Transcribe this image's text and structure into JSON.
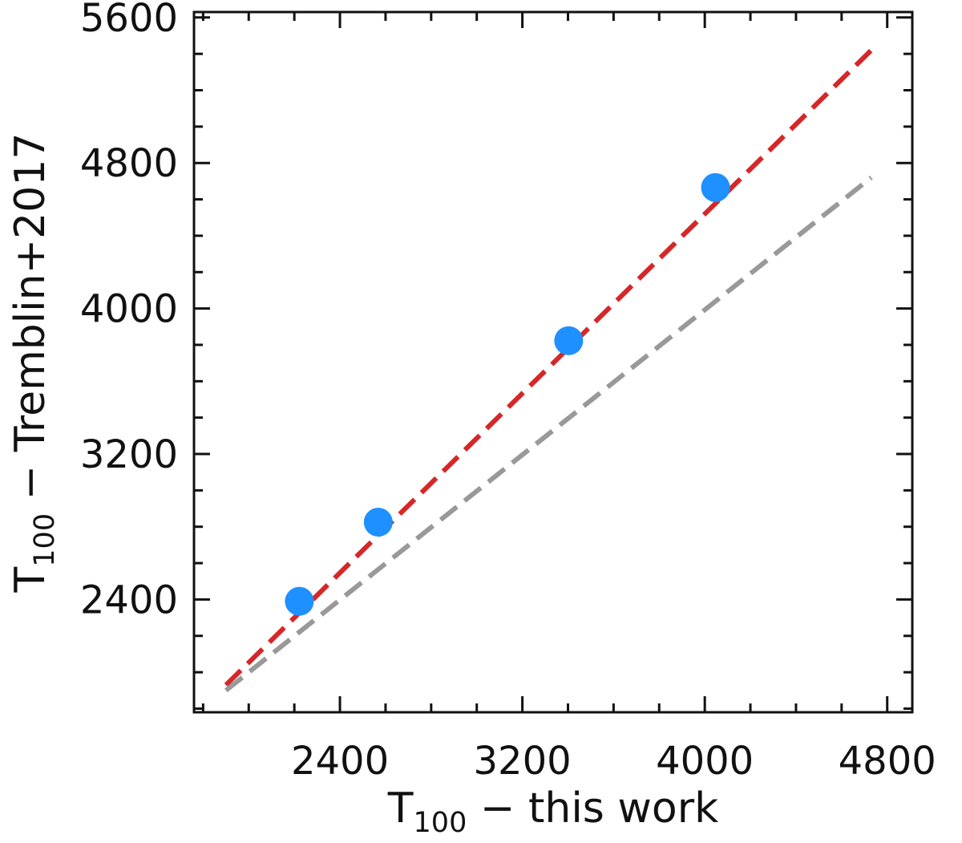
{
  "chart_data": {
    "type": "scatter",
    "title": "",
    "xlabel": {
      "main": "T",
      "sub": "100",
      "rest": " − this work"
    },
    "ylabel": {
      "main": "T",
      "sub": "100",
      "rest": " − Tremblin+2017"
    },
    "xlim": [
      1760,
      4910
    ],
    "ylim": [
      1780,
      5630
    ],
    "xticks": [
      2400,
      3200,
      4000,
      4800
    ],
    "yticks": [
      2400,
      3200,
      4000,
      4800,
      5600
    ],
    "xtick_labels": [
      "2400",
      "3200",
      "4000",
      "4800"
    ],
    "ytick_labels": [
      "2400",
      "3200",
      "4000",
      "4800",
      "5600"
    ],
    "x_minor_step": 200,
    "y_minor_step": 200,
    "grid": false,
    "legend": "none",
    "points": {
      "x": [
        2222,
        2568,
        3403,
        4047
      ],
      "y": [
        2390,
        2825,
        3823,
        4665
      ],
      "color": "#1e90ff"
    },
    "lines": [
      {
        "style": "dashed",
        "color": "#d62728",
        "x": [
          1900,
          4730
        ],
        "y": [
          1930,
          5420
        ]
      },
      {
        "style": "dashed",
        "color": "#999999",
        "x": [
          1900,
          4730
        ],
        "y": [
          1900,
          4720
        ]
      }
    ]
  }
}
